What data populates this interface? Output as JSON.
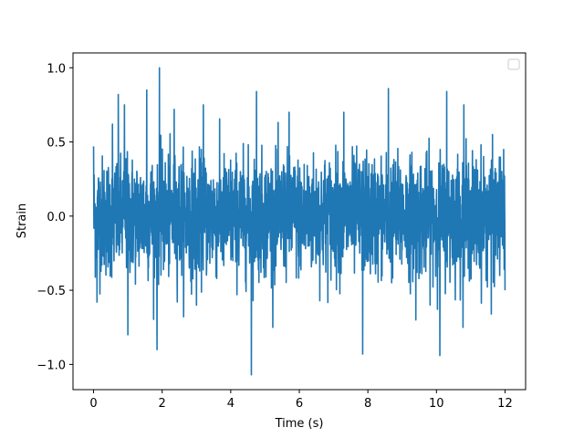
{
  "chart_data": {
    "type": "line",
    "title": "",
    "xlabel": "Time (s)",
    "ylabel": "Strain",
    "xlim": [
      -0.6,
      12.6
    ],
    "ylim": [
      -1.17,
      1.1
    ],
    "x_ticks": [
      0,
      2,
      4,
      6,
      8,
      10,
      12
    ],
    "x_tick_labels": [
      "0",
      "2",
      "4",
      "6",
      "8",
      "10",
      "12"
    ],
    "y_ticks": [
      -1.0,
      -0.5,
      0.0,
      0.5,
      1.0
    ],
    "y_tick_labels": [
      "−1.0",
      "−0.5",
      "0.0",
      "0.5",
      "1.0"
    ],
    "grid": false,
    "legend": {
      "placement": "upper right",
      "entries": []
    },
    "series": [
      {
        "color": "#1f77b4",
        "x_start": 0,
        "x_end": 12,
        "points": 2400,
        "noise_amplitude": 0.2,
        "extremes": [
          {
            "x": 0.0,
            "y": 0.47
          },
          {
            "x": 0.1,
            "y": -0.58
          },
          {
            "x": 0.55,
            "y": 0.62
          },
          {
            "x": 0.72,
            "y": 0.82
          },
          {
            "x": 0.9,
            "y": 0.75
          },
          {
            "x": 1.0,
            "y": -0.8
          },
          {
            "x": 1.55,
            "y": 0.85
          },
          {
            "x": 1.85,
            "y": -0.9
          },
          {
            "x": 1.92,
            "y": 1.0
          },
          {
            "x": 2.35,
            "y": 0.72
          },
          {
            "x": 3.2,
            "y": 0.75
          },
          {
            "x": 3.0,
            "y": -0.6
          },
          {
            "x": 4.6,
            "y": -1.07
          },
          {
            "x": 4.75,
            "y": 0.84
          },
          {
            "x": 5.7,
            "y": 0.7
          },
          {
            "x": 7.3,
            "y": 0.7
          },
          {
            "x": 7.85,
            "y": -0.93
          },
          {
            "x": 8.6,
            "y": 0.86
          },
          {
            "x": 9.4,
            "y": -0.7
          },
          {
            "x": 10.1,
            "y": -0.94
          },
          {
            "x": 10.3,
            "y": 0.84
          },
          {
            "x": 10.8,
            "y": 0.75
          },
          {
            "x": 11.6,
            "y": -0.66
          },
          {
            "x": 12.0,
            "y": -0.5
          }
        ]
      }
    ]
  }
}
